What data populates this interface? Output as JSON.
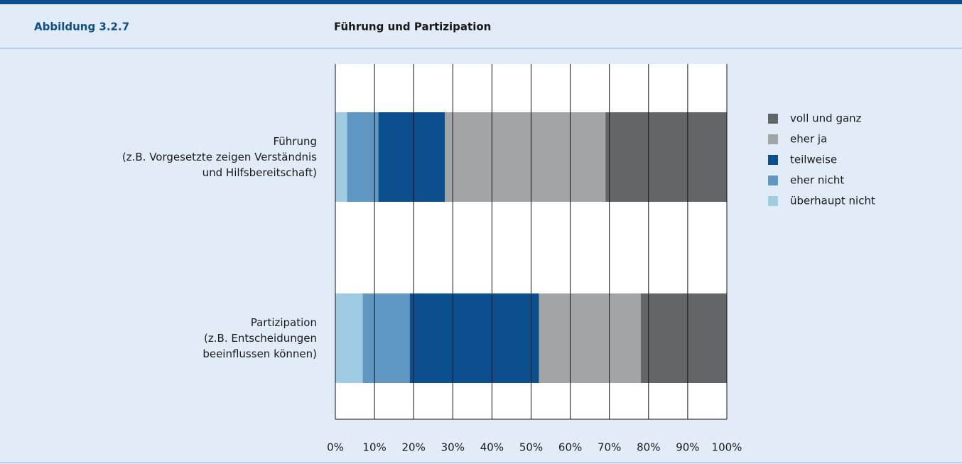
{
  "header": {
    "label": "Abbildung 3.2.7",
    "title": "Führung und Partizipation"
  },
  "chart_data": {
    "type": "stacked_barh",
    "categories": [
      "Führung\n(z.B. Vorgesetzte zeigen Verständnis\nund Hilfsbereitschaft)",
      "Partizipation\n(z.B. Entscheidungen\nbeeinflussen können)"
    ],
    "series": [
      {
        "name": "überhaupt nicht",
        "color": "#9fcbe3",
        "values": [
          3,
          7
        ]
      },
      {
        "name": "eher nicht",
        "color": "#6198c3",
        "values": [
          8,
          12
        ]
      },
      {
        "name": "teilweise",
        "color": "#0b4f8e",
        "values": [
          17,
          33
        ]
      },
      {
        "name": "eher ja",
        "color": "#a2a5a6",
        "values": [
          41,
          26
        ]
      },
      {
        "name": "voll und ganz",
        "color": "#636668",
        "values": [
          31,
          22
        ]
      }
    ],
    "xlim": [
      0,
      100
    ],
    "xticks": [
      {
        "value": 0,
        "label": "0%"
      },
      {
        "value": 10,
        "label": "10%"
      },
      {
        "value": 20,
        "label": "20%"
      },
      {
        "value": 30,
        "label": "30%"
      },
      {
        "value": 40,
        "label": "40%"
      },
      {
        "value": 50,
        "label": "50%"
      },
      {
        "value": 60,
        "label": "60%"
      },
      {
        "value": 70,
        "label": "70%"
      },
      {
        "value": 80,
        "label": "80%"
      },
      {
        "value": 90,
        "label": "90%"
      },
      {
        "value": 100,
        "label": "100%"
      }
    ],
    "grid": true,
    "legend": "right"
  }
}
